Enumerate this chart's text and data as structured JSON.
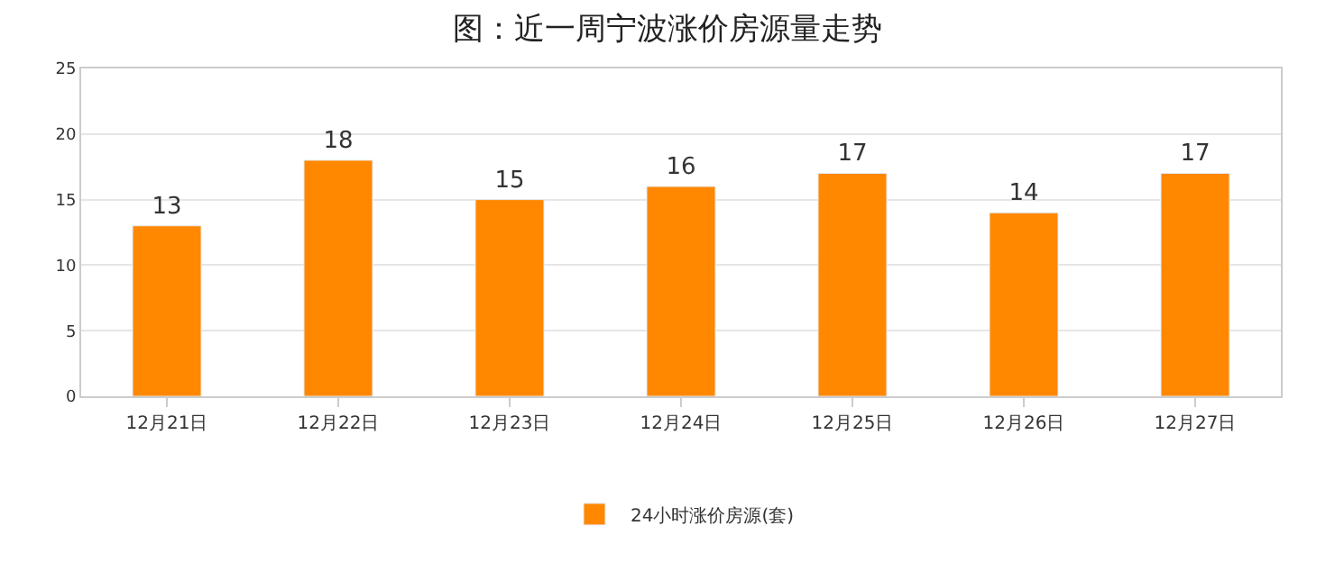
{
  "chart_data": {
    "type": "bar",
    "title": "图：近一周宁波涨价房源量走势",
    "categories": [
      "12月21日",
      "12月22日",
      "12月23日",
      "12月24日",
      "12月25日",
      "12月26日",
      "12月27日"
    ],
    "series": [
      {
        "name": "24小时涨价房源(套)",
        "color": "#ff8800",
        "values": [
          13,
          18,
          15,
          16,
          17,
          14,
          17
        ]
      }
    ],
    "ylim": [
      0,
      25
    ],
    "yticks": [
      0,
      5,
      10,
      15,
      20,
      25
    ],
    "grid": "y",
    "legend": "bottom",
    "data_labels": true
  }
}
